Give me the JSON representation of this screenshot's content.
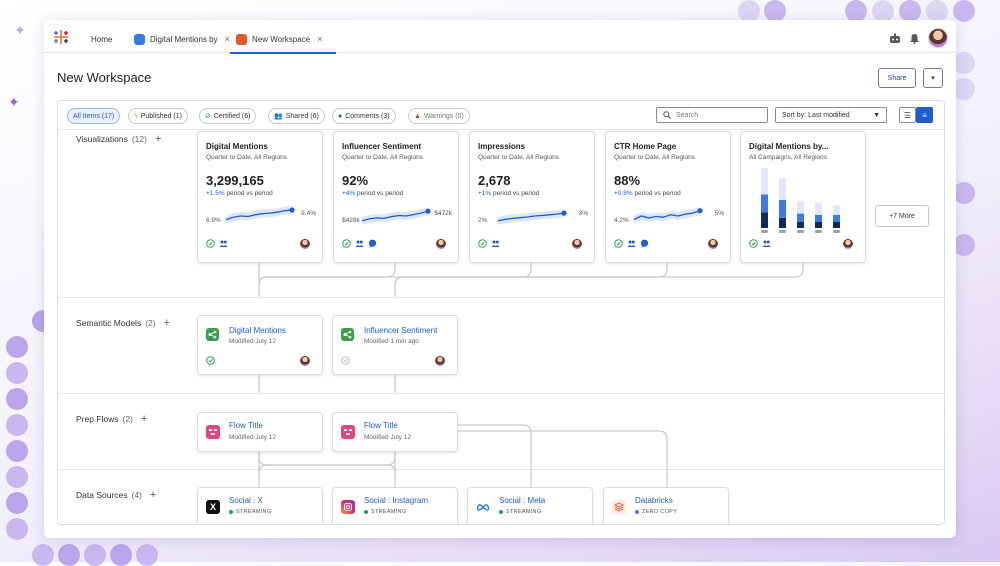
{
  "colors": {
    "accent": "#1f5bd4",
    "check": "#2e9b4e",
    "warning": "#c0392b",
    "streaming": "#2e9b4e",
    "zero_copy": "#5a6fd8"
  },
  "tabs": [
    {
      "label": "Home"
    },
    {
      "label": "Digital Mentions by",
      "close": "×"
    },
    {
      "label": "New Workspace",
      "close": "×"
    }
  ],
  "page": {
    "title": "New Workspace",
    "share_label": "Share",
    "dropdown_label": "▾"
  },
  "filters": [
    {
      "label": "All Items (17)",
      "icon": ""
    },
    {
      "label": "Published (1)",
      "icon": "lightning-icon"
    },
    {
      "label": "Certified (6)",
      "icon": "check-icon"
    },
    {
      "label": "Shared (6)",
      "icon": "people-icon"
    },
    {
      "label": "Comments (3)",
      "icon": "comment-icon"
    },
    {
      "label": "Warnings (0)",
      "icon": "warning-icon"
    }
  ],
  "search": {
    "placeholder": "Search"
  },
  "sort": {
    "label": "Sort by: Last modified"
  },
  "sections": {
    "visualizations": {
      "label": "Visualizations",
      "count": "(12)",
      "plus": "+"
    },
    "semantic_models": {
      "label": "Semantic Models",
      "count": "(2)",
      "plus": "+"
    },
    "prep_flows": {
      "label": "Prep Flows",
      "count": "(2)",
      "plus": "+"
    },
    "data_sources": {
      "label": "Data Sources",
      "count": "(4)",
      "plus": "+"
    }
  },
  "viz_cards": [
    {
      "title": "Digital Mentions",
      "subtitle": "Quarter to Date, All Regions",
      "value": "3,299,165",
      "delta_pct": "+1.5%",
      "delta_text": "period vs period",
      "spark_min": "6.9%",
      "spark_max": "9.4%",
      "spark": [
        0.35,
        0.45,
        0.5,
        0.48,
        0.55,
        0.6,
        0.62,
        0.66,
        0.72,
        0.75
      ],
      "icons": [
        "check-icon",
        "people-icon"
      ]
    },
    {
      "title": "Influencer Sentiment",
      "subtitle": "Quarter to Date, All Regions",
      "value": "92%",
      "delta_pct": "+4%",
      "delta_text": "period vs period",
      "spark_min": "$428k",
      "spark_max": "$472k",
      "spark": [
        0.3,
        0.38,
        0.42,
        0.4,
        0.47,
        0.52,
        0.5,
        0.56,
        0.62,
        0.7
      ],
      "icons": [
        "check-icon",
        "people-icon",
        "comment-icon"
      ]
    },
    {
      "title": "Impressions",
      "subtitle": "Quarter to Date, All Regions",
      "value": "2,678",
      "delta_pct": "+1%",
      "delta_text": "period vs period",
      "spark_min": "2%",
      "spark_max": "3%",
      "spark": [
        0.3,
        0.36,
        0.4,
        0.43,
        0.46,
        0.5,
        0.52,
        0.55,
        0.58,
        0.62
      ],
      "icons": [
        "check-icon",
        "people-icon"
      ]
    },
    {
      "title": "CTR Home Page",
      "subtitle": "Quarter to Date, All Regions",
      "value": "88%",
      "delta_pct": "+0.8%",
      "delta_text": "period vs period",
      "spark_min": "4.2%",
      "spark_max": "5%",
      "spark": [
        0.35,
        0.5,
        0.42,
        0.48,
        0.45,
        0.55,
        0.5,
        0.58,
        0.62,
        0.72
      ],
      "icons": [
        "check-icon",
        "people-icon",
        "comment-icon"
      ]
    },
    {
      "title": "Digital Mentions by...",
      "subtitle": "All Campaigns, All Regions",
      "icons": [
        "check-icon",
        "people-icon"
      ]
    }
  ],
  "stacked_bars": [
    [
      0.26,
      0.3,
      0.44
    ],
    [
      0.17,
      0.3,
      0.36
    ],
    [
      0.1,
      0.14,
      0.2
    ],
    [
      0.1,
      0.12,
      0.2
    ],
    [
      0.1,
      0.12,
      0.16
    ]
  ],
  "more_label": "+7 More",
  "models": [
    {
      "title": "Digital Mentions",
      "subtitle": "Modified July 12",
      "certified": true
    },
    {
      "title": "Influencer Sentiment",
      "subtitle": "Modified 1 min ago",
      "certified": false
    }
  ],
  "flows": [
    {
      "title": "Flow Title",
      "subtitle": "Modified July 12"
    },
    {
      "title": "Flow Title",
      "subtitle": "Modified July 12"
    }
  ],
  "sources": [
    {
      "title": "Social : X",
      "status": "STREAMING",
      "icon": "x-logo-icon"
    },
    {
      "title": "Social : Instagram",
      "status": "STREAMING",
      "icon": "instagram-logo-icon"
    },
    {
      "title": "Social : Meta",
      "status": "STREAMING",
      "icon": "meta-logo-icon"
    },
    {
      "title": "Databricks",
      "status": "ZERO COPY",
      "icon": "databricks-logo-icon"
    }
  ]
}
